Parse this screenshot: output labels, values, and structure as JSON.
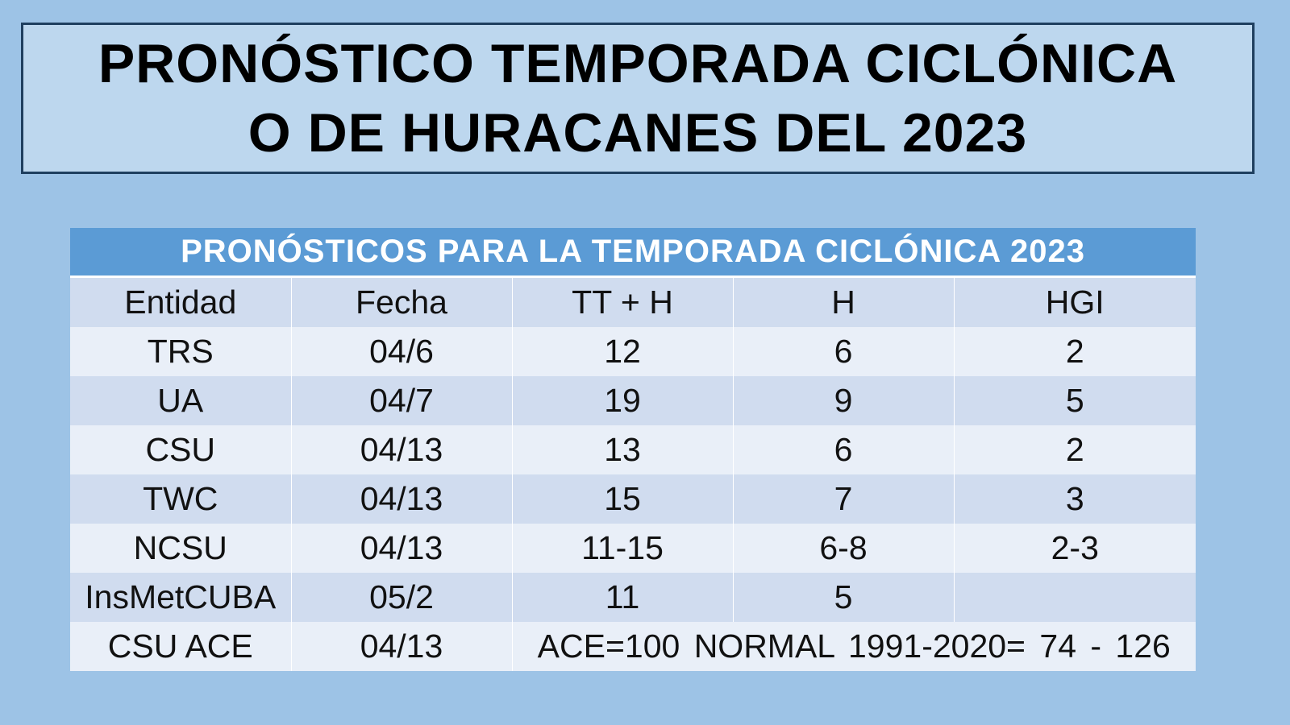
{
  "title": {
    "line1": "PRONÓSTICO TEMPORADA CICLÓNICA",
    "line2": "O DE HURACANES DEL 2023"
  },
  "table": {
    "title": "PRONÓSTICOS PARA LA TEMPORADA CICLÓNICA 2023",
    "headers": [
      "Entidad",
      "Fecha",
      "TT + H",
      "H",
      "HGI"
    ],
    "rows": [
      [
        "TRS",
        "04/6",
        "12",
        "6",
        "2"
      ],
      [
        "UA",
        "04/7",
        "19",
        "9",
        "5"
      ],
      [
        "CSU",
        "04/13",
        "13",
        "6",
        "2"
      ],
      [
        "TWC",
        "04/13",
        "15",
        "7",
        "3"
      ],
      [
        "NCSU",
        "04/13",
        "11-15",
        "6-8",
        "2-3"
      ],
      [
        "InsMetCUBA",
        "05/2",
        "11",
        "5",
        ""
      ]
    ],
    "ace_row": {
      "entity": "CSU ACE",
      "date": "04/13",
      "note": "ACE=100 NORMAL 1991-2020= 74 - 126"
    }
  },
  "colors": {
    "background": "#9dc3e6",
    "title_box": "#bdd7ee",
    "table_header": "#5b9bd5",
    "row_dark": "#d0dcef",
    "row_light": "#e9eff8"
  }
}
